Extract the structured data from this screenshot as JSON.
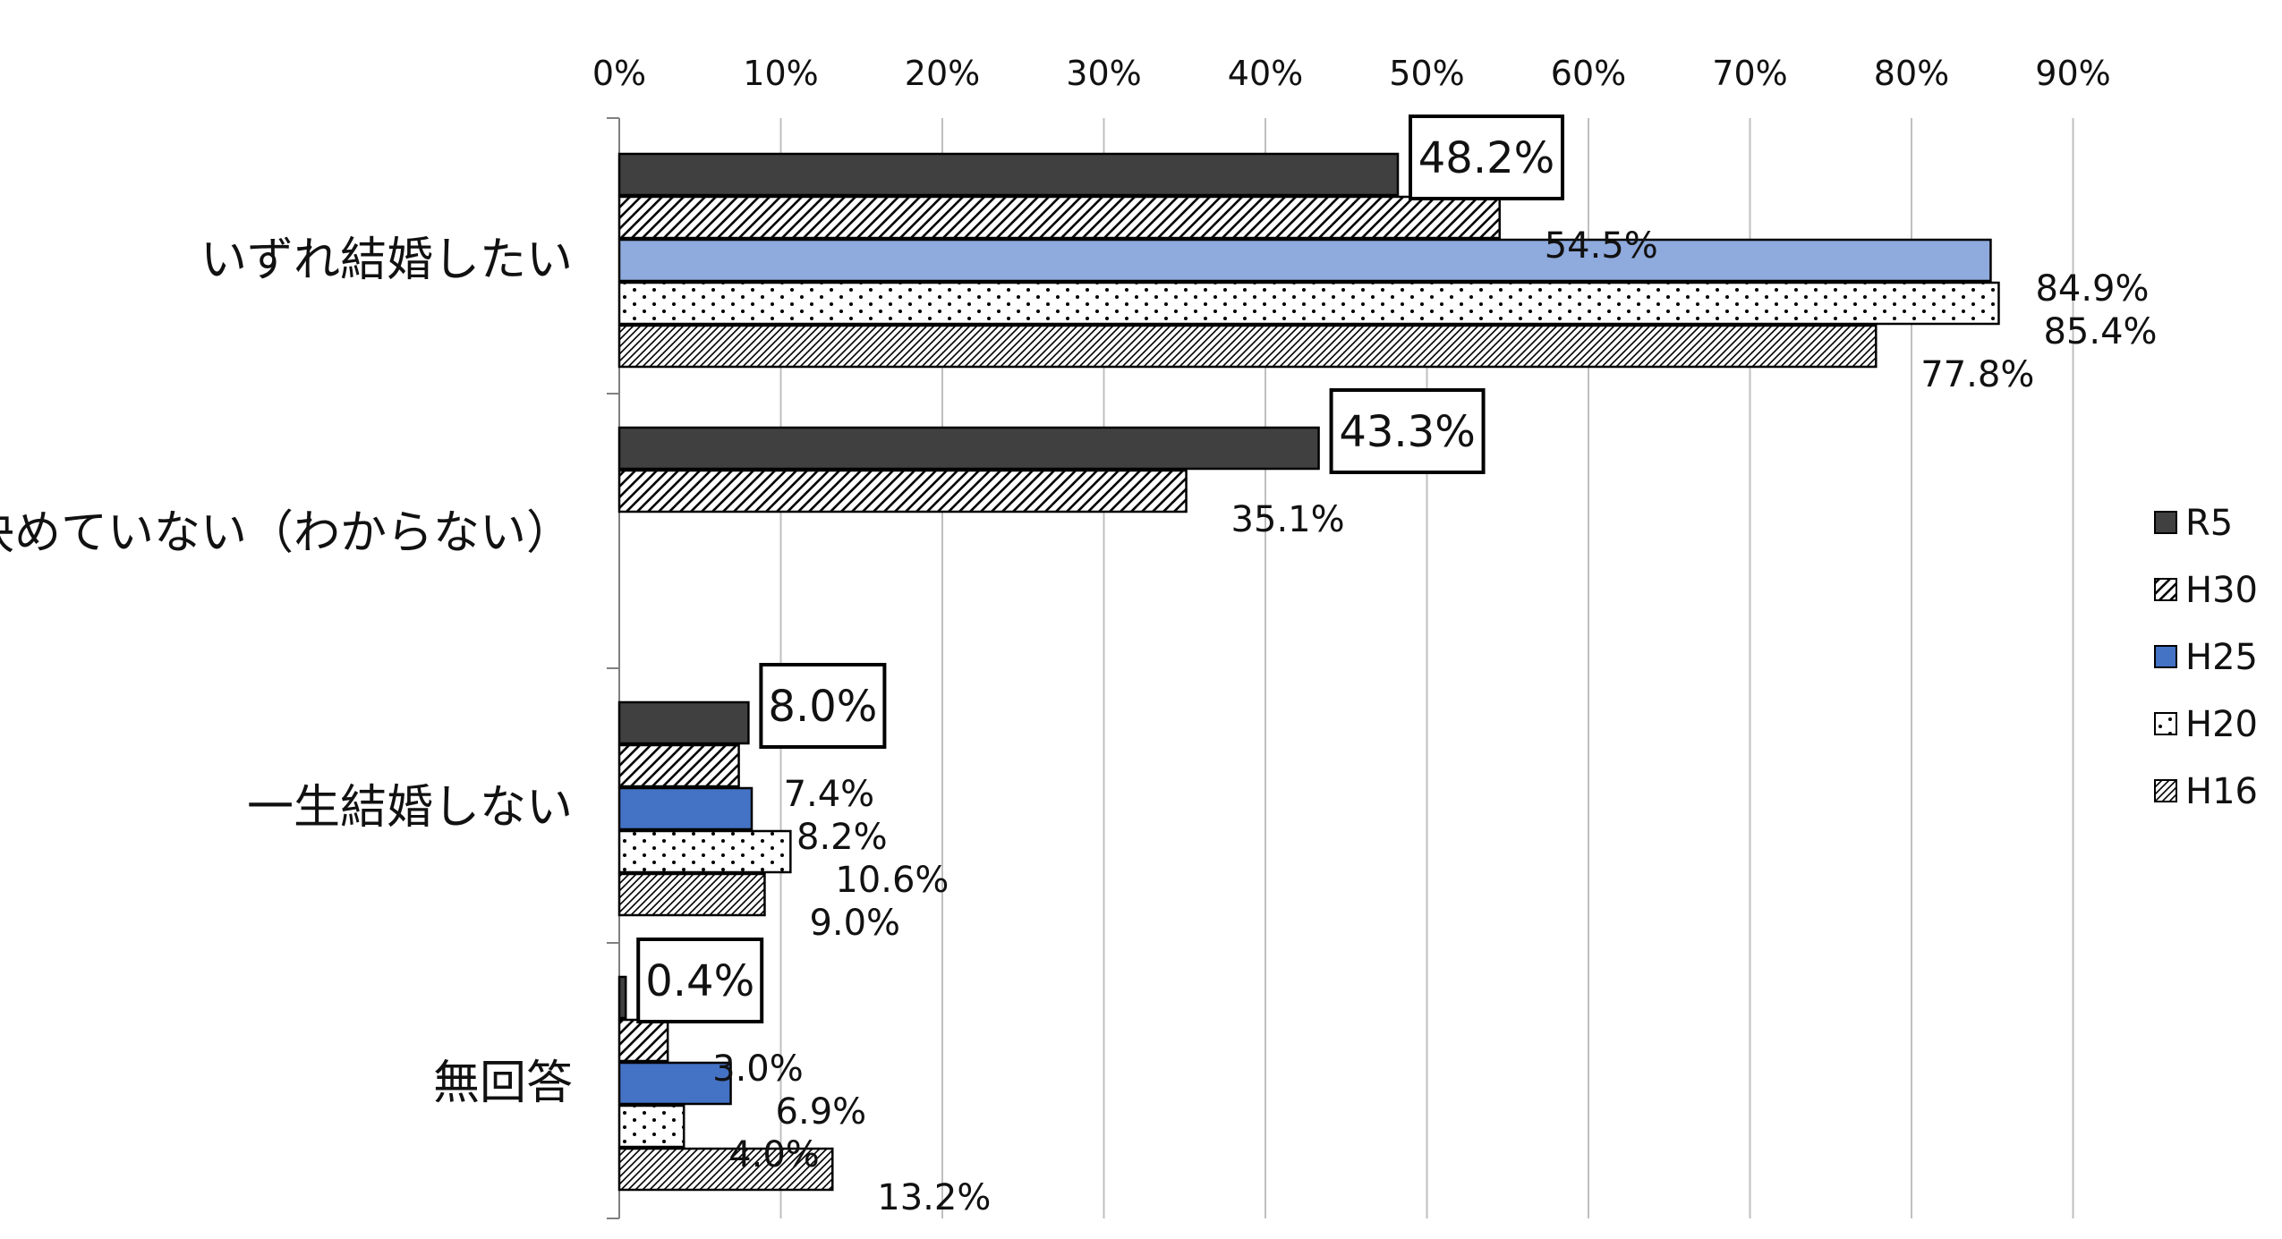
{
  "colors": {
    "R5": "#404040",
    "H30": "#ffffff",
    "H25_highlight": "#8faadc",
    "H25": "#4472c4",
    "H20": "#ffffff",
    "H16": "#ffffff",
    "grid": "#bfbfbf",
    "stroke": "#000000"
  },
  "chart_data": {
    "type": "bar",
    "orientation": "horizontal",
    "title": "",
    "xlabel": "",
    "ylabel": "",
    "xlim": [
      0,
      90
    ],
    "grid": true,
    "legend_position": "right",
    "x_ticks": [
      "0%",
      "10%",
      "20%",
      "30%",
      "40%",
      "50%",
      "60%",
      "70%",
      "80%",
      "90%"
    ],
    "categories": [
      "いずれ結婚したい",
      "決めていない（わからない）",
      "一生結婚しない",
      "無回答"
    ],
    "series": [
      {
        "name": "R5",
        "values": [
          48.2,
          43.3,
          8.0,
          0.4
        ],
        "labels": [
          "48.2%",
          "43.3%",
          "8.0%",
          "0.4%"
        ],
        "pattern": "solid-dark"
      },
      {
        "name": "H30",
        "values": [
          54.5,
          35.1,
          7.4,
          3.0
        ],
        "labels": [
          "54.5%",
          "35.1%",
          "7.4%",
          "3.0%"
        ],
        "pattern": "diagonal"
      },
      {
        "name": "H25",
        "values": [
          84.9,
          null,
          8.2,
          6.9
        ],
        "labels": [
          "84.9%",
          "",
          "8.2%",
          "6.9%"
        ],
        "pattern": "solid-blue"
      },
      {
        "name": "H20",
        "values": [
          85.4,
          null,
          10.6,
          4.0
        ],
        "labels": [
          "85.4%",
          "",
          "10.6%",
          "4.0%"
        ],
        "pattern": "dots"
      },
      {
        "name": "H16",
        "values": [
          77.8,
          null,
          9.0,
          13.2
        ],
        "labels": [
          "77.8%",
          "",
          "9.0%",
          "13.2%"
        ],
        "pattern": "diagonal-dense"
      }
    ],
    "highlight_series": "R5"
  }
}
